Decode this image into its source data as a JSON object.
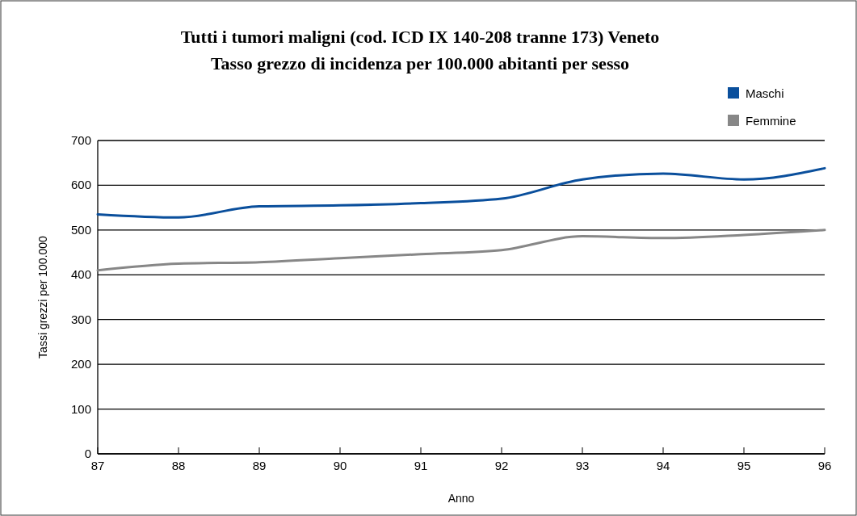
{
  "chart_data": {
    "type": "line",
    "title": "Tutti i tumori maligni (cod. ICD IX 140-208 tranne 173) Veneto",
    "subtitle": "Tasso grezzo di incidenza per 100.000 abitanti per sesso",
    "xlabel": "Anno",
    "ylabel": "Tassi grezzi per 100.000",
    "x": [
      87,
      88,
      89,
      90,
      91,
      92,
      93,
      94,
      95,
      96
    ],
    "series": [
      {
        "name": "Maschi",
        "color": "#0a4f9c",
        "values": [
          535,
          528,
          553,
          555,
          560,
          570,
          613,
          626,
          613,
          638
        ]
      },
      {
        "name": "Femmine",
        "color": "#878787",
        "values": [
          410,
          425,
          428,
          437,
          446,
          455,
          486,
          482,
          489,
          500
        ]
      }
    ],
    "xlim": [
      87,
      96
    ],
    "xticks": [
      87,
      88,
      89,
      90,
      91,
      92,
      93,
      94,
      95,
      96
    ],
    "ylim": [
      0,
      700
    ],
    "yticks": [
      0,
      100,
      200,
      300,
      400,
      500,
      600,
      700
    ],
    "grid": "y",
    "legend": "top right"
  }
}
